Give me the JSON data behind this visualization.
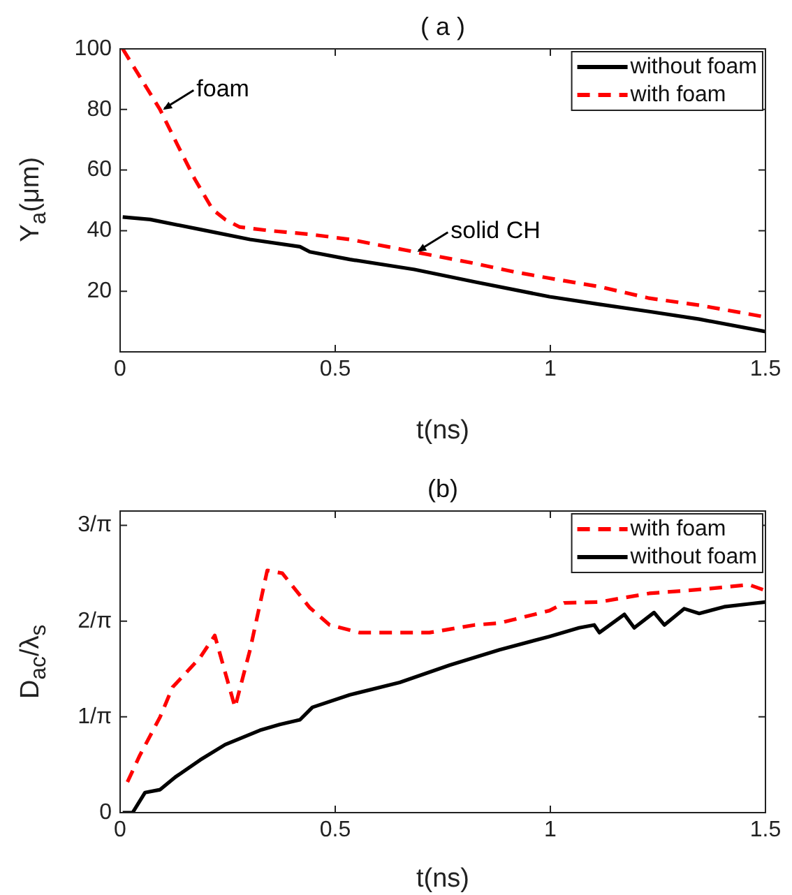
{
  "chart_data": [
    {
      "type": "line",
      "title": "( a )",
      "xlabel": "t(ns)",
      "ylabel": "Y$_{a}$(μm)",
      "xlim": [
        0,
        1.5
      ],
      "xticks": [
        0,
        0.5,
        1,
        1.5
      ],
      "ylim": [
        0,
        100
      ],
      "yticks": [
        20,
        40,
        60,
        80,
        100
      ],
      "legend": "top right",
      "annotations": [
        {
          "text": "foam",
          "x": 0.093,
          "y": 79.9
        },
        {
          "text": "solid CH",
          "x": 0.684,
          "y": 33
        }
      ],
      "series": [
        {
          "name": "without foam",
          "color": "#000000",
          "line_style": "solid",
          "x": [
            0.006,
            0.07,
            0.186,
            0.302,
            0.418,
            0.441,
            0.534,
            0.684,
            0.824,
            0.998,
            1.114,
            1.23,
            1.346,
            1.5
          ],
          "values": [
            44.5,
            43.7,
            40.4,
            37.1,
            34.7,
            33,
            30.5,
            27.2,
            23.1,
            18.2,
            15.7,
            13.3,
            10.8,
            6.7
          ]
        },
        {
          "name": "with foam",
          "color": "#ff0000",
          "line_style": "dashed",
          "x": [
            0.006,
            0.093,
            0.133,
            0.174,
            0.215,
            0.244,
            0.278,
            0.348,
            0.441,
            0.534,
            0.684,
            0.824,
            0.916,
            0.998,
            1.114,
            1.23,
            1.346,
            1.496
          ],
          "values": [
            100,
            79.9,
            68.4,
            56.9,
            47,
            43.7,
            41.2,
            40,
            38.8,
            37.1,
            33,
            29.2,
            26.4,
            24.3,
            21.5,
            17.7,
            15.4,
            11.6
          ]
        }
      ]
    },
    {
      "type": "line",
      "title": "(b)",
      "xlabel": "t(ns)",
      "ylabel": "D$_{ac}$/λ$_{s}$",
      "xlim": [
        0,
        1.5
      ],
      "xticks": [
        0,
        0.5,
        1,
        1.5
      ],
      "ylim": [
        0,
        3.15
      ],
      "yticks": [
        0,
        {
          "value": 1,
          "label": "1/π"
        },
        {
          "value": 2,
          "label": "2/π"
        },
        {
          "value": 3,
          "label": "3/π"
        }
      ],
      "legend": "top right",
      "series": [
        {
          "name": "with foam",
          "color": "#ff0000",
          "line_style": "dashed",
          "x": [
            0.017,
            0.046,
            0.093,
            0.122,
            0.186,
            0.22,
            0.267,
            0.302,
            0.342,
            0.377,
            0.441,
            0.487,
            0.557,
            0.65,
            0.719,
            0.824,
            0.882,
            0.998,
            1.032,
            1.114,
            1.23,
            1.346,
            1.462,
            1.5
          ],
          "values": [
            0.32,
            0.6,
            1.0,
            1.31,
            1.62,
            1.85,
            1.1,
            1.7,
            2.53,
            2.5,
            2.14,
            1.96,
            1.88,
            1.88,
            1.88,
            1.96,
            1.98,
            2.11,
            2.19,
            2.2,
            2.29,
            2.33,
            2.38,
            2.32
          ]
        },
        {
          "name": "without foam",
          "color": "#000000",
          "line_style": "solid",
          "x": [
            0.006,
            0.029,
            0.058,
            0.093,
            0.128,
            0.186,
            0.244,
            0.325,
            0.371,
            0.418,
            0.447,
            0.534,
            0.65,
            0.766,
            0.882,
            0.998,
            1.067,
            1.102,
            1.114,
            1.172,
            1.195,
            1.241,
            1.265,
            1.311,
            1.346,
            1.404,
            1.462,
            1.5
          ],
          "values": [
            0,
            0,
            0.21,
            0.24,
            0.37,
            0.55,
            0.71,
            0.86,
            0.92,
            0.97,
            1.1,
            1.23,
            1.36,
            1.54,
            1.7,
            1.84,
            1.93,
            1.96,
            1.88,
            2.07,
            1.93,
            2.09,
            1.96,
            2.13,
            2.08,
            2.15,
            2.18,
            2.2
          ]
        }
      ]
    }
  ]
}
